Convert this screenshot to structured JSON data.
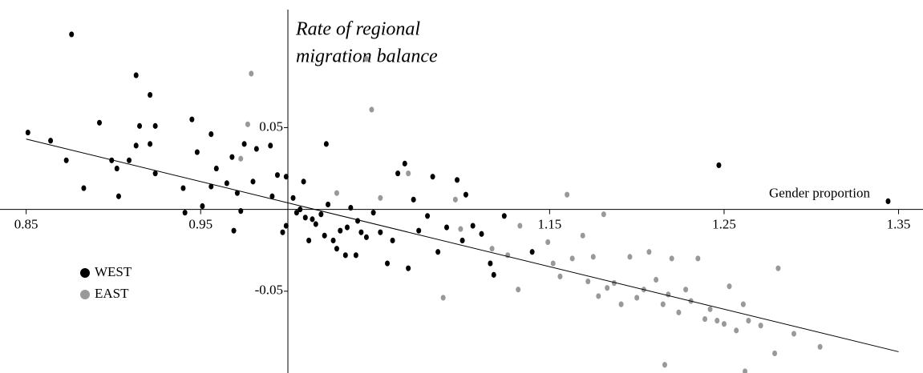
{
  "chart_data": {
    "type": "scatter",
    "y_label": [
      "Rate of regional",
      "migration balance"
    ],
    "x_label": "Gender proportion",
    "xlim": [
      0.835,
      1.364
    ],
    "ylim": [
      -0.1,
      0.128
    ],
    "xticks": [
      0.85,
      0.95,
      1.15,
      1.25,
      1.35
    ],
    "yticks": [
      0.05,
      -0.05
    ],
    "axes_cross": [
      1.0,
      0
    ],
    "series": [
      {
        "name": "WEST",
        "color": "#000000",
        "x": [
          0.851,
          0.864,
          0.876,
          0.873,
          0.883,
          0.892,
          0.899,
          0.902,
          0.903,
          0.909,
          0.913,
          0.913,
          0.915,
          0.921,
          0.921,
          0.924,
          0.924,
          0.94,
          0.941,
          0.945,
          0.948,
          0.951,
          0.956,
          0.956,
          0.959,
          0.965,
          0.968,
          0.969,
          0.971,
          0.973,
          0.975,
          0.98,
          0.982,
          0.99,
          0.991,
          0.994,
          0.997,
          0.999,
          0.999,
          1.003,
          1.007,
          1.01,
          1.012,
          1.016,
          1.019,
          1.022,
          1.023,
          1.026,
          1.03,
          1.033,
          1.036,
          1.039,
          1.042,
          1.045,
          1.049,
          1.053,
          1.057,
          1.06,
          1.063,
          1.067,
          1.069,
          1.072,
          1.075,
          1.08,
          1.083,
          1.086,
          1.091,
          1.097,
          1.1,
          1.102,
          1.106,
          1.111,
          1.116,
          1.118,
          1.124,
          1.14,
          1.247,
          1.344,
          1.005,
          1.009,
          1.014,
          1.021,
          1.028,
          1.034,
          1.04
        ],
        "values": [
          0.047,
          0.042,
          0.107,
          0.03,
          0.013,
          0.053,
          0.03,
          0.025,
          0.008,
          0.03,
          0.082,
          0.039,
          0.051,
          0.07,
          0.04,
          0.022,
          0.051,
          0.013,
          -0.002,
          0.055,
          0.035,
          0.002,
          0.046,
          0.014,
          0.025,
          0.016,
          0.032,
          -0.013,
          0.01,
          -0.001,
          0.04,
          0.017,
          0.037,
          0.039,
          0.008,
          0.021,
          -0.014,
          0.02,
          -0.01,
          0.007,
          0,
          -0.005,
          -0.019,
          -0.009,
          -0.003,
          0.04,
          0.003,
          -0.019,
          -0.013,
          -0.028,
          0.001,
          -0.028,
          -0.014,
          -0.017,
          -0.002,
          -0.014,
          -0.033,
          -0.019,
          0.022,
          0.028,
          -0.036,
          0.006,
          -0.013,
          -0.004,
          0.02,
          -0.026,
          -0.011,
          0.018,
          -0.019,
          0.009,
          -0.01,
          -0.015,
          -0.033,
          -0.04,
          -0.004,
          -0.026,
          0.027,
          0.005,
          -0.002,
          0.017,
          -0.006,
          -0.016,
          -0.024,
          -0.011,
          -0.007
        ]
      },
      {
        "name": "EAST",
        "color": "#999999",
        "x": [
          0.979,
          0.977,
          0.973,
          1.045,
          1.048,
          1.069,
          1.028,
          1.053,
          1.096,
          1.099,
          1.117,
          1.126,
          1.133,
          1.132,
          1.089,
          1.149,
          1.152,
          1.156,
          1.16,
          1.163,
          1.169,
          1.172,
          1.175,
          1.178,
          1.181,
          1.183,
          1.187,
          1.191,
          1.196,
          1.2,
          1.204,
          1.207,
          1.211,
          1.215,
          1.218,
          1.22,
          1.224,
          1.228,
          1.231,
          1.235,
          1.239,
          1.242,
          1.246,
          1.25,
          1.253,
          1.257,
          1.261,
          1.264,
          1.271,
          1.281,
          1.279,
          1.29,
          1.305,
          1.216,
          1.262
        ],
        "values": [
          0.083,
          0.052,
          0.031,
          0.092,
          0.061,
          0.022,
          0.01,
          0.007,
          0.006,
          -0.012,
          -0.024,
          -0.028,
          -0.01,
          -0.049,
          -0.054,
          -0.02,
          -0.033,
          -0.041,
          0.009,
          -0.03,
          -0.016,
          -0.044,
          -0.029,
          -0.053,
          -0.003,
          -0.048,
          -0.045,
          -0.058,
          -0.029,
          -0.054,
          -0.049,
          -0.026,
          -0.043,
          -0.058,
          -0.052,
          -0.03,
          -0.063,
          -0.049,
          -0.056,
          -0.03,
          -0.067,
          -0.061,
          -0.068,
          -0.07,
          -0.047,
          -0.074,
          -0.058,
          -0.068,
          -0.071,
          -0.036,
          -0.088,
          -0.076,
          -0.084,
          -0.095,
          -0.099
        ]
      }
    ],
    "trend_line": {
      "x": [
        0.85,
        1.35
      ],
      "values": [
        0.043,
        -0.087
      ]
    }
  }
}
